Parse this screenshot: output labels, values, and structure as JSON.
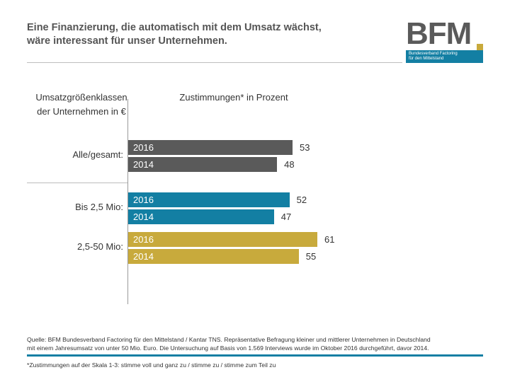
{
  "header": {
    "title_line1": "Eine Finanzierung, die automatisch mit dem Umsatz wächst,",
    "title_line2": "wäre interessant für unser Unternehmen."
  },
  "logo": {
    "letters": "BFM",
    "line1": "Bundesverband Factoring",
    "line2": "für den Mittelstand"
  },
  "columns": {
    "left_line1": "Umsatzgrößenklassen",
    "left_line2": "der Unternehmen in €",
    "right": "Zustimmungen* in Prozent"
  },
  "chart_data": {
    "type": "bar",
    "orientation": "horizontal",
    "categories": [
      "Alle/gesamt:",
      "Bis 2,5 Mio:",
      "2,5-50 Mio:"
    ],
    "series": [
      {
        "name": "2016",
        "values": [
          53,
          52,
          61
        ]
      },
      {
        "name": "2014",
        "values": [
          48,
          47,
          55
        ]
      }
    ],
    "xlim": [
      0,
      80
    ],
    "colors": [
      "#5a5a5a",
      "#137fa3",
      "#c8aa3c"
    ]
  },
  "footer": {
    "source_line1": "Quelle: BFM Bundesverband Factoring für den Mittelstand / Kantar TNS. Repräsentative Befragung kleiner und mittlerer Unternehmen in Deutschland",
    "source_line2": "mit einem Jahresumsatz von unter 50 Mio. Euro. Die Untersuchung auf Basis von 1.569 Interviews wurde im Oktober 2016 durchgeführt, davor 2014.",
    "footnote": "*Zustimmungen auf der Skala 1-3: stimme voll und ganz zu / stimme zu / stimme zum Teil zu"
  }
}
